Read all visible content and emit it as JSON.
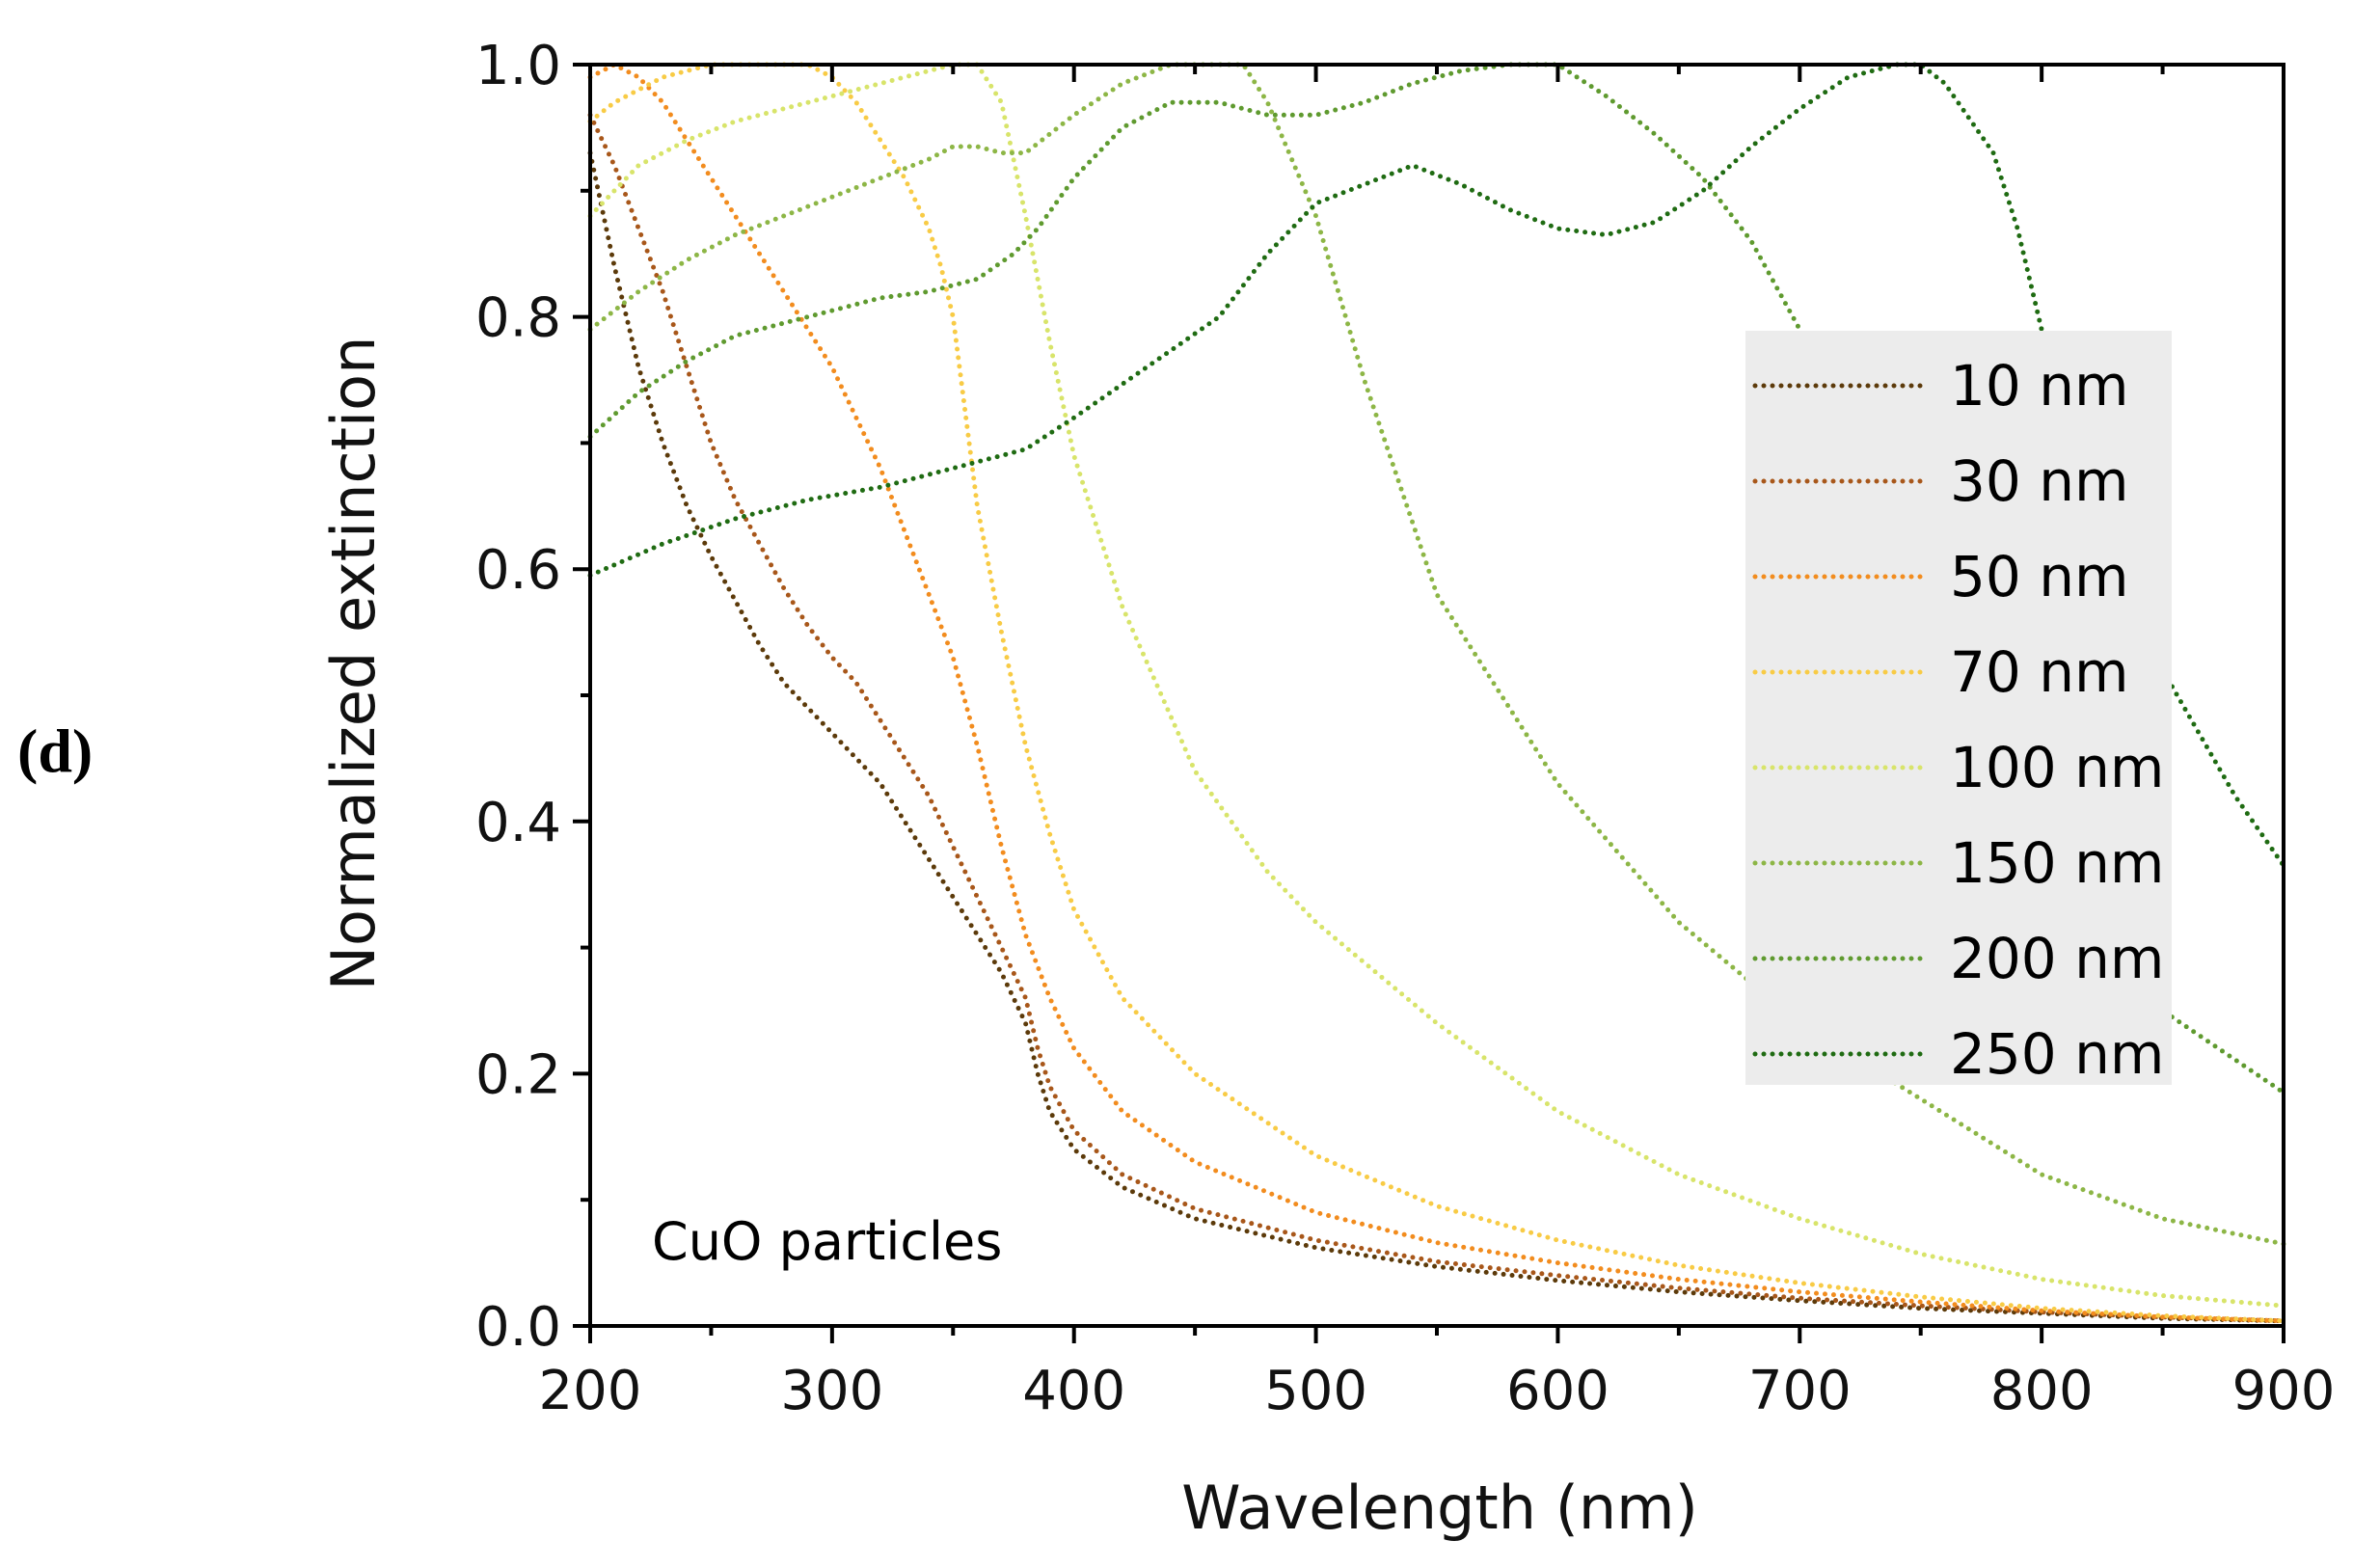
{
  "panel_label": "(d)",
  "chart_data": {
    "type": "line",
    "title": "",
    "xlabel": "Wavelength (nm)",
    "ylabel": "Normalized extinction",
    "xlim": [
      200,
      900
    ],
    "ylim": [
      0,
      1.0
    ],
    "xticks": [
      "200",
      "300",
      "400",
      "500",
      "600",
      "700",
      "800",
      "900"
    ],
    "yticks": [
      "0.0",
      "0.2",
      "0.4",
      "0.6",
      "0.8",
      "1.0"
    ],
    "grid": false,
    "legend_position": "right",
    "annotation": "CuO particles",
    "line_style": "dotted",
    "series": [
      {
        "name": "10 nm",
        "color": "#5c3a0a",
        "x": [
          200,
          210,
          220,
          230,
          240,
          250,
          260,
          270,
          280,
          290,
          300,
          310,
          320,
          330,
          340,
          350,
          360,
          370,
          380,
          385,
          390,
          400,
          420,
          450,
          500,
          550,
          600,
          650,
          700,
          750,
          800,
          850,
          900
        ],
        "y": [
          0.93,
          0.84,
          0.76,
          0.7,
          0.65,
          0.61,
          0.575,
          0.54,
          0.51,
          0.49,
          0.47,
          0.45,
          0.43,
          0.4,
          0.37,
          0.34,
          0.31,
          0.28,
          0.24,
          0.2,
          0.17,
          0.14,
          0.11,
          0.085,
          0.062,
          0.047,
          0.036,
          0.027,
          0.02,
          0.014,
          0.01,
          0.006,
          0.004
        ]
      },
      {
        "name": "30 nm",
        "color": "#a8571a",
        "x": [
          200,
          210,
          220,
          230,
          240,
          250,
          260,
          270,
          280,
          290,
          300,
          310,
          320,
          330,
          340,
          350,
          360,
          370,
          380,
          385,
          390,
          400,
          420,
          450,
          500,
          550,
          600,
          650,
          700,
          750,
          800,
          850,
          900
        ],
        "y": [
          0.96,
          0.92,
          0.87,
          0.82,
          0.76,
          0.7,
          0.655,
          0.62,
          0.585,
          0.555,
          0.53,
          0.51,
          0.48,
          0.45,
          0.42,
          0.38,
          0.34,
          0.3,
          0.26,
          0.22,
          0.19,
          0.155,
          0.12,
          0.093,
          0.068,
          0.051,
          0.04,
          0.03,
          0.022,
          0.016,
          0.011,
          0.007,
          0.004
        ]
      },
      {
        "name": "50 nm",
        "color": "#f28c1e",
        "x": [
          200,
          210,
          220,
          230,
          240,
          250,
          260,
          270,
          280,
          290,
          300,
          310,
          320,
          330,
          340,
          350,
          360,
          370,
          380,
          390,
          400,
          420,
          450,
          500,
          550,
          600,
          650,
          700,
          750,
          800,
          850,
          900
        ],
        "y": [
          0.99,
          1.0,
          0.99,
          0.97,
          0.94,
          0.91,
          0.88,
          0.85,
          0.82,
          0.79,
          0.76,
          0.72,
          0.68,
          0.63,
          0.58,
          0.53,
          0.46,
          0.38,
          0.31,
          0.26,
          0.22,
          0.17,
          0.13,
          0.09,
          0.066,
          0.05,
          0.037,
          0.027,
          0.019,
          0.012,
          0.007,
          0.004
        ]
      },
      {
        "name": "70 nm",
        "color": "#f8cb45",
        "x": [
          200,
          210,
          220,
          230,
          240,
          250,
          260,
          270,
          280,
          290,
          300,
          310,
          320,
          330,
          340,
          345,
          350,
          360,
          370,
          380,
          390,
          400,
          420,
          450,
          500,
          550,
          600,
          650,
          700,
          750,
          800,
          850,
          900
        ],
        "y": [
          0.955,
          0.97,
          0.98,
          0.99,
          0.995,
          1.0,
          1.0,
          1.0,
          1.0,
          1.0,
          0.99,
          0.97,
          0.94,
          0.91,
          0.87,
          0.84,
          0.8,
          0.65,
          0.55,
          0.46,
          0.39,
          0.33,
          0.26,
          0.2,
          0.135,
          0.095,
          0.068,
          0.048,
          0.034,
          0.023,
          0.014,
          0.008,
          0.004
        ]
      },
      {
        "name": "100 nm",
        "color": "#d8e46a",
        "x": [
          200,
          220,
          240,
          260,
          280,
          300,
          320,
          340,
          350,
          360,
          370,
          380,
          390,
          400,
          420,
          450,
          480,
          500,
          550,
          600,
          650,
          700,
          750,
          800,
          850,
          900
        ],
        "y": [
          0.88,
          0.92,
          0.94,
          0.955,
          0.965,
          0.975,
          0.985,
          0.995,
          1.0,
          1.0,
          0.97,
          0.88,
          0.78,
          0.69,
          0.57,
          0.44,
          0.36,
          0.32,
          0.24,
          0.17,
          0.12,
          0.085,
          0.057,
          0.037,
          0.024,
          0.016
        ]
      },
      {
        "name": "150 nm",
        "color": "#8db646",
        "x": [
          200,
          220,
          240,
          260,
          280,
          300,
          320,
          340,
          350,
          360,
          370,
          380,
          400,
          420,
          440,
          460,
          470,
          480,
          500,
          520,
          550,
          600,
          650,
          700,
          750,
          800,
          850,
          900
        ],
        "y": [
          0.79,
          0.82,
          0.845,
          0.865,
          0.88,
          0.895,
          0.91,
          0.925,
          0.935,
          0.935,
          0.93,
          0.93,
          0.96,
          0.985,
          1.0,
          1.0,
          1.0,
          0.97,
          0.88,
          0.75,
          0.58,
          0.43,
          0.32,
          0.24,
          0.18,
          0.12,
          0.085,
          0.065
        ]
      },
      {
        "name": "200 nm",
        "color": "#5f9a2f",
        "x": [
          200,
          220,
          240,
          260,
          280,
          300,
          320,
          340,
          360,
          375,
          385,
          400,
          420,
          440,
          460,
          470,
          480,
          500,
          520,
          540,
          560,
          580,
          600,
          620,
          640,
          660,
          680,
          700,
          750,
          800,
          850,
          900
        ],
        "y": [
          0.705,
          0.74,
          0.765,
          0.785,
          0.795,
          0.805,
          0.815,
          0.82,
          0.83,
          0.85,
          0.87,
          0.91,
          0.95,
          0.97,
          0.97,
          0.965,
          0.96,
          0.96,
          0.97,
          0.985,
          0.995,
          1.0,
          1.0,
          0.975,
          0.945,
          0.91,
          0.86,
          0.79,
          0.59,
          0.38,
          0.25,
          0.185
        ]
      },
      {
        "name": "250 nm",
        "color": "#1f6b12",
        "x": [
          200,
          230,
          260,
          290,
          320,
          350,
          380,
          400,
          430,
          460,
          480,
          500,
          520,
          540,
          560,
          580,
          600,
          620,
          640,
          660,
          680,
          700,
          720,
          740,
          750,
          760,
          780,
          790,
          800,
          820,
          850,
          880,
          900
        ],
        "y": [
          0.595,
          0.62,
          0.64,
          0.655,
          0.665,
          0.68,
          0.695,
          0.72,
          0.76,
          0.8,
          0.85,
          0.89,
          0.905,
          0.92,
          0.905,
          0.885,
          0.87,
          0.865,
          0.875,
          0.9,
          0.935,
          0.965,
          0.99,
          1.0,
          1.0,
          0.985,
          0.93,
          0.87,
          0.79,
          0.66,
          0.52,
          0.42,
          0.365
        ]
      }
    ]
  }
}
